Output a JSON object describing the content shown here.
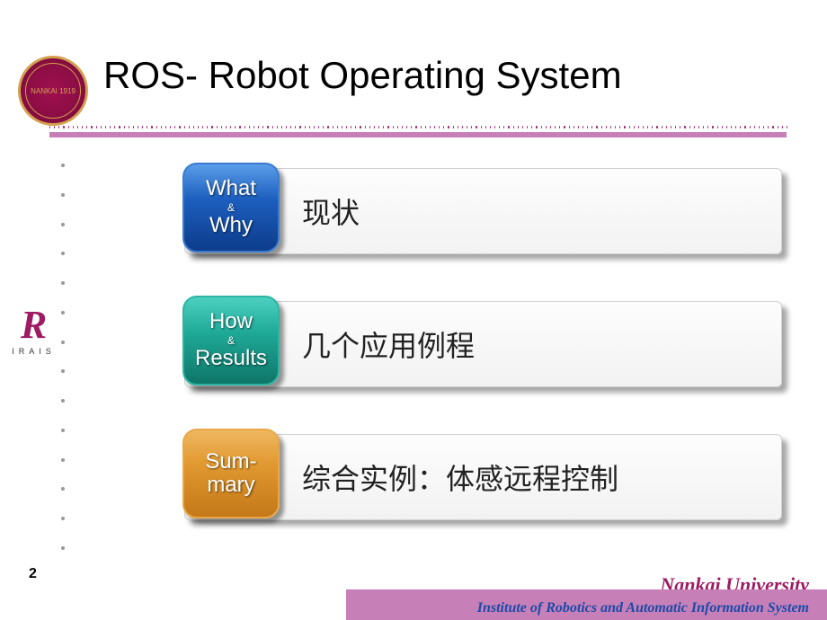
{
  "title": "ROS- Robot Operating System",
  "page_number": "2",
  "seal": {
    "text": "NANKAI\n1919"
  },
  "side_logo": {
    "letter": "R",
    "label": "IRAIS"
  },
  "rows": [
    {
      "badge_class": "badge-blue",
      "line1": "What",
      "amp": "&",
      "line2": "Why",
      "panel_text": "现状"
    },
    {
      "badge_class": "badge-teal",
      "line1": "How",
      "amp": "&",
      "line2": "Results",
      "panel_text": "几个应用例程"
    },
    {
      "badge_class": "badge-orange",
      "line1": "Sum-",
      "amp": "",
      "line2": "mary",
      "panel_text": "综合实例：体感远程控制"
    }
  ],
  "footer": {
    "university": "Nankai University",
    "institute": "Institute of Robotics and Automatic Information System"
  },
  "colors": {
    "accent": "#9e1b64",
    "divider": "#c77fb8",
    "footer_text": "#1a4ba8"
  }
}
